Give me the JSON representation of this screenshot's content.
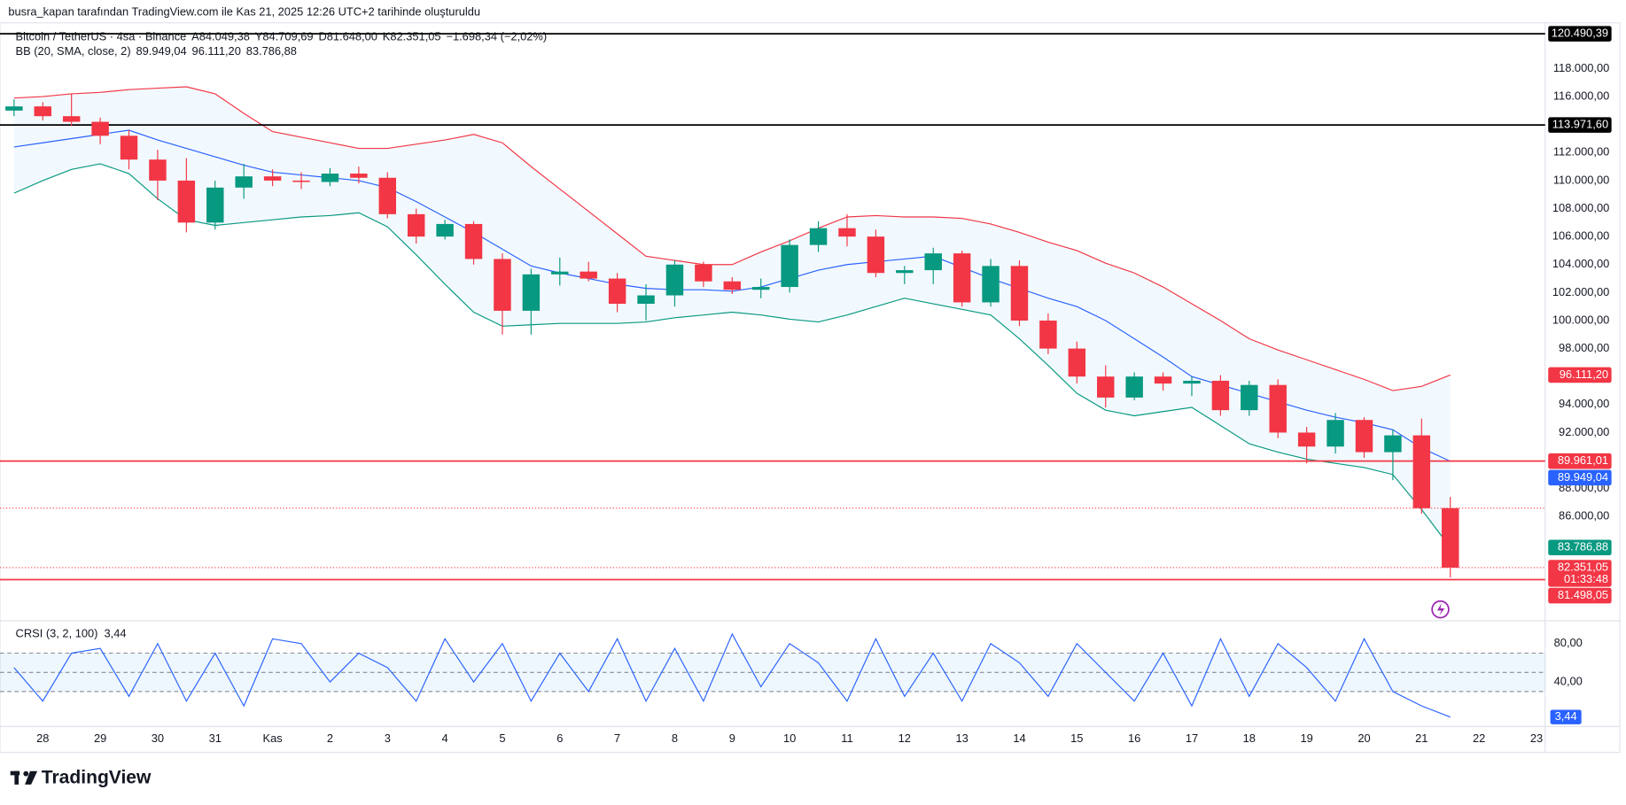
{
  "header": {
    "attribution": "busra_kapan tarafından TradingView.com ile Kas 21, 2025 12:26 UTC+2 tarihinde oluşturuldu",
    "symbol": "Bitcoin / TetherUS · 4sa · Binance",
    "ohlc": [
      "A84.049,38",
      "Y84.709,69",
      "D81.648,00",
      "K82.351,05"
    ],
    "change": "−1.698,34 (−2,02%)"
  },
  "logo": "TradingView",
  "chart_data": [
    {
      "type": "candlestick",
      "x": [
        -0.5,
        0,
        0.5,
        1,
        1.5,
        2,
        2.5,
        3,
        3.5,
        4,
        4.5,
        5,
        5.5,
        6,
        6.5,
        7,
        7.5,
        8,
        8.5,
        9,
        9.5,
        10,
        10.5,
        11,
        11.5,
        12,
        12.5,
        13,
        13.5,
        14,
        14.5,
        15,
        15.5,
        16,
        16.5,
        17,
        17.5,
        18,
        18.5,
        19,
        19.5,
        20,
        20.5,
        21,
        21.5,
        22,
        22.5,
        23,
        23.5,
        24,
        24.5
      ],
      "open": [
        115000,
        115300,
        114600,
        114200,
        113200,
        111500,
        110000,
        107000,
        109500,
        110300,
        110000,
        109900,
        110500,
        110200,
        107600,
        106000,
        106900,
        104400,
        100700,
        103300,
        103500,
        103000,
        101200,
        101800,
        104000,
        102800,
        102200,
        102400,
        105400,
        106600,
        106000,
        103400,
        103600,
        104800,
        101300,
        103900,
        100000,
        98000,
        96000,
        94500,
        96000,
        95500,
        95700,
        93600,
        95400,
        92000,
        91000,
        92900,
        90600,
        91800,
        86600
      ],
      "high": [
        115800,
        115600,
        116200,
        114500,
        113600,
        112200,
        111600,
        110000,
        111200,
        110800,
        110600,
        110900,
        111000,
        110600,
        108000,
        107200,
        107100,
        104800,
        103700,
        104500,
        104200,
        103400,
        102600,
        104300,
        104200,
        103100,
        103000,
        105800,
        107100,
        107600,
        106500,
        103900,
        105200,
        105000,
        104400,
        104300,
        100500,
        98500,
        96800,
        96300,
        96300,
        96000,
        96100,
        95700,
        95800,
        92400,
        93400,
        93100,
        92200,
        93000,
        87400
      ],
      "low": [
        114600,
        114300,
        113900,
        112600,
        110800,
        108600,
        106300,
        106500,
        108700,
        109600,
        109400,
        109600,
        109800,
        107300,
        105500,
        105800,
        104000,
        99000,
        99000,
        102500,
        102800,
        100600,
        100000,
        101000,
        102400,
        101900,
        101600,
        102000,
        104900,
        105300,
        103100,
        102600,
        102600,
        101000,
        101000,
        99600,
        97600,
        95500,
        93800,
        94300,
        95000,
        94600,
        93200,
        93200,
        91600,
        89800,
        90500,
        90200,
        88600,
        86200,
        81648
      ],
      "close": [
        115300,
        114600,
        114200,
        113200,
        111500,
        110000,
        107000,
        109500,
        110300,
        110000,
        109900,
        110500,
        110200,
        107600,
        106000,
        106900,
        104400,
        100700,
        103300,
        103500,
        103000,
        101200,
        101800,
        104000,
        102800,
        102200,
        102400,
        105400,
        106600,
        106000,
        103400,
        103600,
        104800,
        101300,
        103900,
        100000,
        98000,
        96000,
        94500,
        96000,
        95500,
        95700,
        93600,
        95400,
        92000,
        91000,
        92900,
        90600,
        91800,
        86600,
        82351.05
      ],
      "up_color": "#089981",
      "down_color": "#f23645",
      "last_label": "82.351,05",
      "countdown": "01:33:48",
      "bands": {
        "label": "BB (20, SMA, close, 2)",
        "fill": "rgba(33,150,243,0.06)",
        "lines": [
          {
            "color": "#2962ff",
            "last_label": "89.949,04",
            "values": [
              112400,
              112700,
              113000,
              113300,
              113600,
              112900,
              112300,
              111700,
              111100,
              110600,
              110400,
              110200,
              110000,
              109500,
              108500,
              107400,
              106300,
              105100,
              103900,
              103400,
              103000,
              102600,
              102300,
              102200,
              102200,
              102100,
              102400,
              103000,
              103600,
              104000,
              104200,
              104400,
              104600,
              103800,
              103000,
              102300,
              101600,
              101000,
              100000,
              98700,
              97400,
              96000,
              95400,
              94800,
              94200,
              93600,
              93100,
              92700,
              92200,
              90900,
              89949.04
            ]
          },
          {
            "color": "#f23645",
            "last_label": "96.111,20",
            "values": [
              115900,
              116000,
              116200,
              116300,
              116500,
              116600,
              116700,
              116200,
              114800,
              113500,
              113100,
              112700,
              112300,
              112300,
              112600,
              112900,
              113300,
              112700,
              111000,
              109400,
              107800,
              106200,
              104600,
              104300,
              104000,
              104000,
              104900,
              105700,
              106600,
              107400,
              107500,
              107400,
              107400,
              107300,
              106900,
              106300,
              105600,
              105000,
              104100,
              103400,
              102400,
              101200,
              100000,
              98700,
              97900,
              97200,
              96500,
              95800,
              95000,
              95300,
              96111.2
            ]
          },
          {
            "color": "#089981",
            "last_label": "83.786,88",
            "values": [
              109100,
              110000,
              110800,
              111200,
              110500,
              108700,
              107200,
              106800,
              107000,
              107200,
              107400,
              107500,
              107700,
              106700,
              104700,
              102600,
              100600,
              99600,
              99700,
              99800,
              99800,
              99800,
              99900,
              100200,
              100400,
              100600,
              100400,
              100100,
              99900,
              100400,
              101000,
              101600,
              101200,
              100800,
              100400,
              98700,
              96800,
              94800,
              93600,
              93200,
              93500,
              93800,
              92500,
              91200,
              90600,
              90100,
              89800,
              89500,
              89000,
              86500,
              83786.88
            ]
          }
        ]
      },
      "hlines": [
        {
          "value": 120490.39,
          "label": "120.490,39",
          "color": "#000000",
          "style": "solid"
        },
        {
          "value": 113971.6,
          "label": "113.971,60",
          "color": "#000000",
          "style": "solid"
        },
        {
          "value": 89961.01,
          "label": "89.961,01",
          "color": "#f23645",
          "style": "solid"
        },
        {
          "value": 81498.05,
          "label": "81.498,05",
          "color": "#f23645",
          "style": "solid"
        },
        {
          "value": 86600,
          "color": "#f23645",
          "style": "dotted"
        }
      ],
      "xlim": [
        -0.6,
        26.15
      ],
      "xticks": [
        {
          "value": 0,
          "label": "28"
        },
        {
          "value": 1,
          "label": "29"
        },
        {
          "value": 2,
          "label": "30"
        },
        {
          "value": 3,
          "label": "31"
        },
        {
          "value": 4,
          "label": "Kas"
        },
        {
          "value": 5,
          "label": "2"
        },
        {
          "value": 6,
          "label": "3"
        },
        {
          "value": 7,
          "label": "4"
        },
        {
          "value": 8,
          "label": "5"
        },
        {
          "value": 9,
          "label": "6"
        },
        {
          "value": 10,
          "label": "7"
        },
        {
          "value": 11,
          "label": "8"
        },
        {
          "value": 12,
          "label": "9"
        },
        {
          "value": 13,
          "label": "10"
        },
        {
          "value": 14,
          "label": "11"
        },
        {
          "value": 15,
          "label": "12"
        },
        {
          "value": 16,
          "label": "13"
        },
        {
          "value": 17,
          "label": "14"
        },
        {
          "value": 18,
          "label": "15"
        },
        {
          "value": 19,
          "label": "16"
        },
        {
          "value": 20,
          "label": "17"
        },
        {
          "value": 21,
          "label": "18"
        },
        {
          "value": 22,
          "label": "19"
        },
        {
          "value": 23,
          "label": "20"
        },
        {
          "value": 24,
          "label": "21"
        },
        {
          "value": 25,
          "label": "22"
        },
        {
          "value": 26,
          "label": "23"
        }
      ],
      "ylim": [
        78700,
        120900
      ],
      "yticks": [
        {
          "value": 86000,
          "label": "86.000,00"
        },
        {
          "value": 88000,
          "label": "88.000,00"
        },
        {
          "value": 90000,
          "label": "90.000,00"
        },
        {
          "value": 92000,
          "label": "92.000,00"
        },
        {
          "value": 94000,
          "label": "94.000,00"
        },
        {
          "value": 96000,
          "label": "96.000,00"
        },
        {
          "value": 98000,
          "label": "98.000,00"
        },
        {
          "value": 100000,
          "label": "100.000,00"
        },
        {
          "value": 102000,
          "label": "102.000,00"
        },
        {
          "value": 104000,
          "label": "104.000,00"
        },
        {
          "value": 106000,
          "label": "106.000,00"
        },
        {
          "value": 108000,
          "label": "108.000,00"
        },
        {
          "value": 110000,
          "label": "110.000,00"
        },
        {
          "value": 112000,
          "label": "112.000,00"
        },
        {
          "value": 114000,
          "label": "114.000,00"
        },
        {
          "value": 116000,
          "label": "116.000,00"
        },
        {
          "value": 118000,
          "label": "118.000,00"
        }
      ]
    },
    {
      "type": "line",
      "title": "CRSI (3, 2, 100)",
      "color": "#2962ff",
      "last_label": "3,44",
      "x": [
        -0.5,
        0,
        0.5,
        1,
        1.5,
        2,
        2.5,
        3,
        3.5,
        4,
        4.5,
        5,
        5.5,
        6,
        6.5,
        7,
        7.5,
        8,
        8.5,
        9,
        9.5,
        10,
        10.5,
        11,
        11.5,
        12,
        12.5,
        13,
        13.5,
        14,
        14.5,
        15,
        15.5,
        16,
        16.5,
        17,
        17.5,
        18,
        18.5,
        19,
        19.5,
        20,
        20.5,
        21,
        21.5,
        22,
        22.5,
        23,
        23.5,
        24,
        24.5
      ],
      "values": [
        55,
        20,
        70,
        75,
        25,
        80,
        20,
        70,
        15,
        85,
        80,
        40,
        70,
        55,
        20,
        85,
        40,
        80,
        20,
        70,
        30,
        85,
        20,
        75,
        20,
        90,
        35,
        80,
        60,
        20,
        85,
        25,
        70,
        20,
        80,
        60,
        25,
        80,
        50,
        20,
        70,
        15,
        85,
        25,
        80,
        55,
        20,
        85,
        30,
        15,
        3.44
      ],
      "band": [
        30,
        70
      ],
      "midline": 50,
      "band_color": "rgba(33,150,243,0.08)",
      "xlim": [
        -0.6,
        26.15
      ],
      "ylim": [
        -5.4,
        102.7
      ],
      "yticks": [
        {
          "value": 80,
          "label": "80,00"
        },
        {
          "value": 40,
          "label": "40,00"
        }
      ]
    }
  ]
}
